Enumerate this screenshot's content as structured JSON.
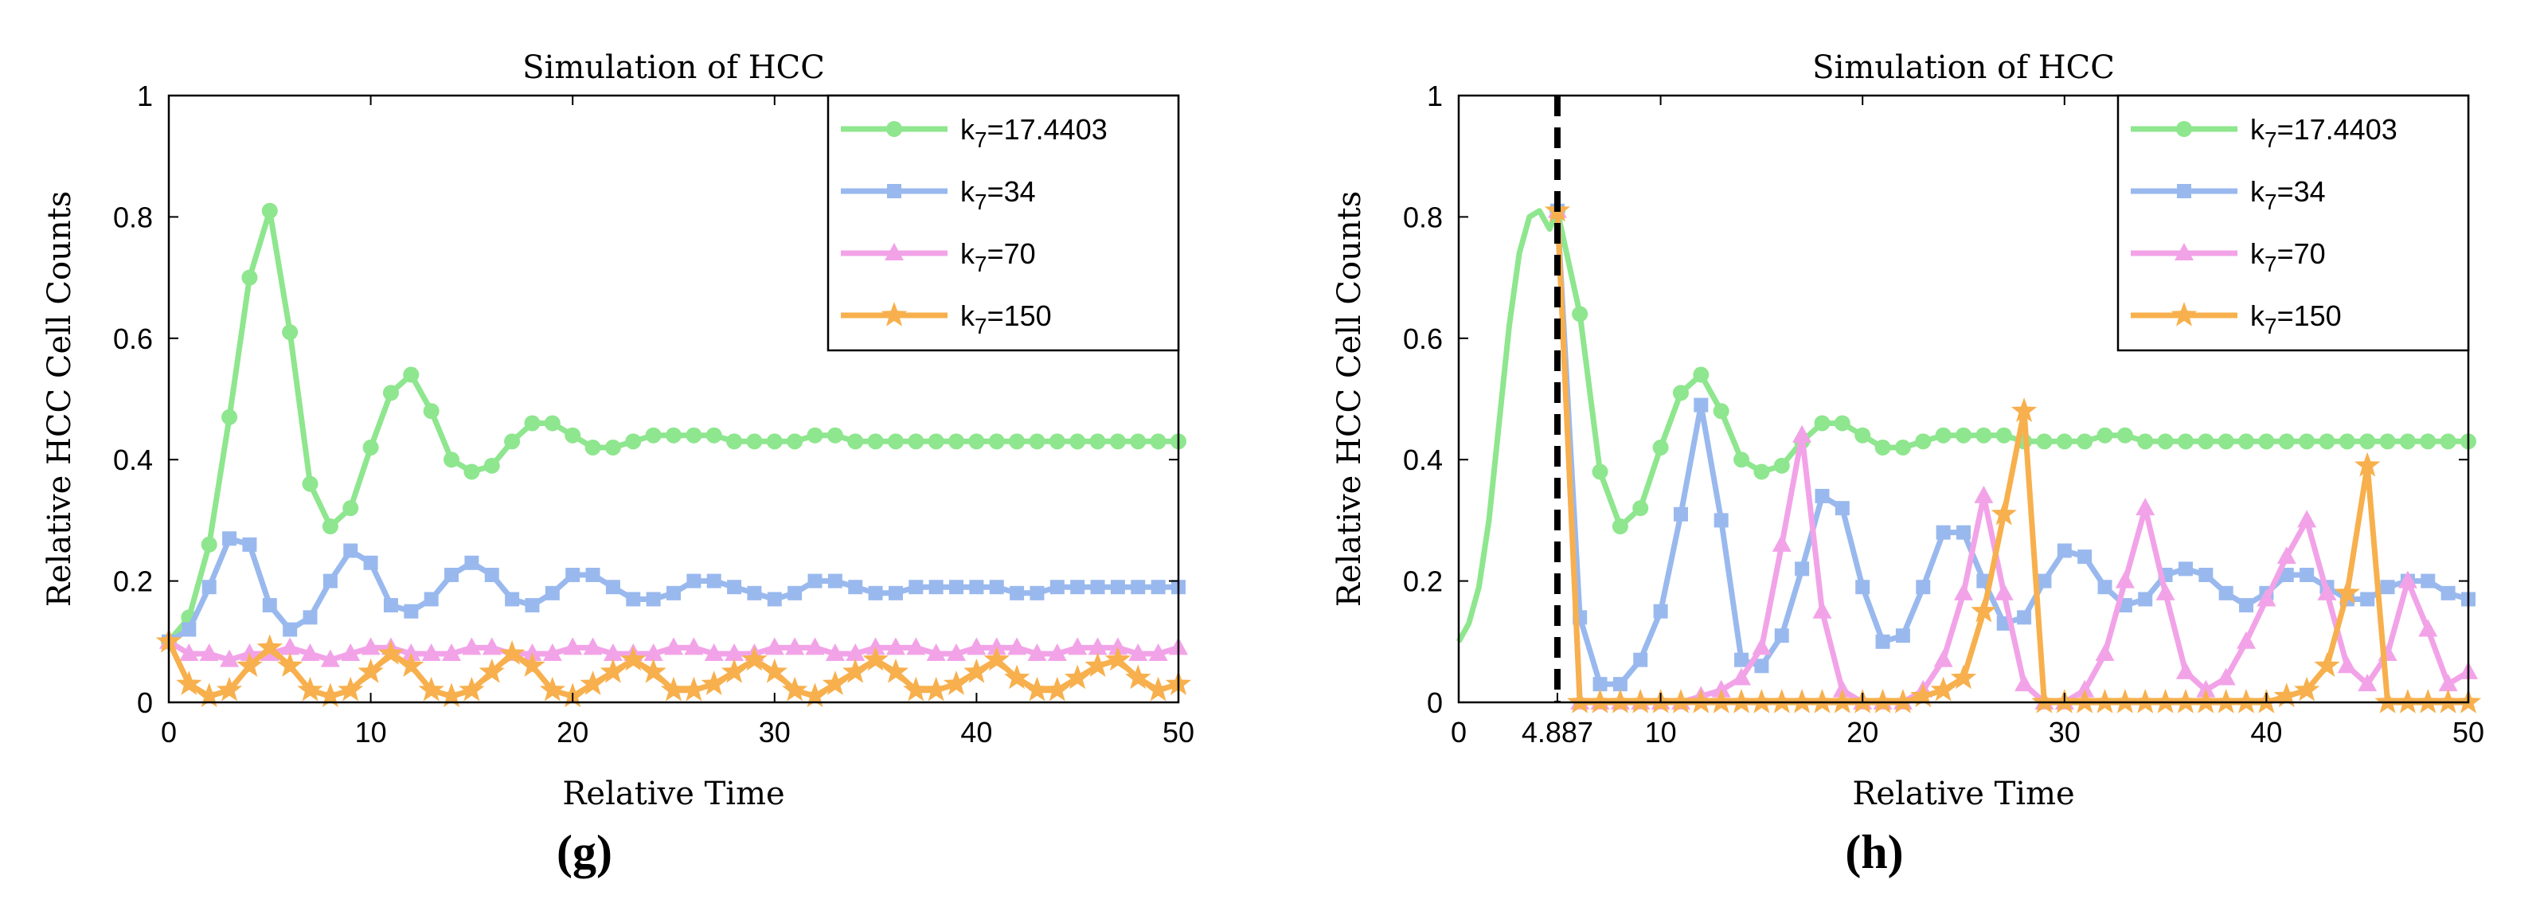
{
  "chart_data": [
    {
      "type": "line",
      "panel_label": "(g)",
      "title": "Simulation of HCC",
      "xlabel": "Relative Time",
      "ylabel": "Relative HCC Cell Counts",
      "xlim": [
        0,
        50
      ],
      "ylim": [
        0,
        1
      ],
      "xticks": [
        {
          "value": 0,
          "label": "0"
        },
        {
          "value": 10,
          "label": "10"
        },
        {
          "value": 20,
          "label": "20"
        },
        {
          "value": 30,
          "label": "30"
        },
        {
          "value": 40,
          "label": "40"
        },
        {
          "value": 50,
          "label": "50"
        }
      ],
      "yticks": [
        {
          "value": 0,
          "label": "0"
        },
        {
          "value": 0.2,
          "label": "0.2"
        },
        {
          "value": 0.4,
          "label": "0.4"
        },
        {
          "value": 0.6,
          "label": "0.6"
        },
        {
          "value": 0.8,
          "label": "0.8"
        },
        {
          "value": 1,
          "label": "1"
        }
      ],
      "legend_position": "top-right",
      "x": [
        0,
        1,
        2,
        3,
        4,
        5,
        6,
        7,
        8,
        9,
        10,
        11,
        12,
        13,
        14,
        15,
        16,
        17,
        18,
        19,
        20,
        21,
        22,
        23,
        24,
        25,
        26,
        27,
        28,
        29,
        30,
        31,
        32,
        33,
        34,
        35,
        36,
        37,
        38,
        39,
        40,
        41,
        42,
        43,
        44,
        45,
        46,
        47,
        48,
        49,
        50
      ],
      "series": [
        {
          "name": "k7=17.4403",
          "legend_base": "k",
          "legend_sub": "7",
          "legend_rest": "=17.4403",
          "color": "#8ee68e",
          "marker": "circle",
          "values": [
            0.1,
            0.14,
            0.26,
            0.47,
            0.7,
            0.81,
            0.61,
            0.36,
            0.29,
            0.32,
            0.42,
            0.51,
            0.54,
            0.48,
            0.4,
            0.38,
            0.39,
            0.43,
            0.46,
            0.46,
            0.44,
            0.42,
            0.42,
            0.43,
            0.44,
            0.44,
            0.44,
            0.44,
            0.43,
            0.43,
            0.43,
            0.43,
            0.44,
            0.44,
            0.43,
            0.43,
            0.43,
            0.43,
            0.43,
            0.43,
            0.43,
            0.43,
            0.43,
            0.43,
            0.43,
            0.43,
            0.43,
            0.43,
            0.43,
            0.43,
            0.43
          ]
        },
        {
          "name": "k7=34",
          "legend_base": "k",
          "legend_sub": "7",
          "legend_rest": "=34",
          "color": "#99b9ee",
          "marker": "square",
          "values": [
            0.1,
            0.12,
            0.19,
            0.27,
            0.26,
            0.16,
            0.12,
            0.14,
            0.2,
            0.25,
            0.23,
            0.16,
            0.15,
            0.17,
            0.21,
            0.23,
            0.21,
            0.17,
            0.16,
            0.18,
            0.21,
            0.21,
            0.19,
            0.17,
            0.17,
            0.18,
            0.2,
            0.2,
            0.19,
            0.18,
            0.17,
            0.18,
            0.2,
            0.2,
            0.19,
            0.18,
            0.18,
            0.19,
            0.19,
            0.19,
            0.19,
            0.19,
            0.18,
            0.18,
            0.19,
            0.19,
            0.19,
            0.19,
            0.19,
            0.19,
            0.19
          ]
        },
        {
          "name": "k7=70",
          "legend_base": "k",
          "legend_sub": "7",
          "legend_rest": "=70",
          "color": "#f2a3e8",
          "marker": "triangle",
          "values": [
            0.1,
            0.08,
            0.08,
            0.07,
            0.08,
            0.08,
            0.09,
            0.08,
            0.07,
            0.08,
            0.09,
            0.09,
            0.08,
            0.08,
            0.08,
            0.09,
            0.09,
            0.08,
            0.08,
            0.08,
            0.09,
            0.09,
            0.08,
            0.08,
            0.08,
            0.09,
            0.09,
            0.08,
            0.08,
            0.08,
            0.09,
            0.09,
            0.09,
            0.08,
            0.08,
            0.09,
            0.09,
            0.09,
            0.08,
            0.08,
            0.09,
            0.09,
            0.09,
            0.08,
            0.08,
            0.09,
            0.09,
            0.09,
            0.08,
            0.08,
            0.09
          ]
        },
        {
          "name": "k7=150",
          "legend_base": "k",
          "legend_sub": "7",
          "legend_rest": "=150",
          "color": "#f7b04d",
          "marker": "star",
          "values": [
            0.1,
            0.03,
            0.01,
            0.02,
            0.06,
            0.09,
            0.06,
            0.02,
            0.01,
            0.02,
            0.05,
            0.08,
            0.06,
            0.02,
            0.01,
            0.02,
            0.05,
            0.08,
            0.06,
            0.02,
            0.01,
            0.03,
            0.05,
            0.07,
            0.05,
            0.02,
            0.02,
            0.03,
            0.05,
            0.07,
            0.05,
            0.02,
            0.01,
            0.03,
            0.05,
            0.07,
            0.05,
            0.02,
            0.02,
            0.03,
            0.05,
            0.07,
            0.04,
            0.02,
            0.02,
            0.04,
            0.06,
            0.07,
            0.04,
            0.02,
            0.03
          ]
        }
      ]
    },
    {
      "type": "line",
      "panel_label": "(h)",
      "title": "Simulation of HCC",
      "xlabel": "Relative Time",
      "ylabel": "Relative HCC Cell Counts",
      "xlim": [
        0,
        50
      ],
      "ylim": [
        0,
        1
      ],
      "xticks": [
        {
          "value": 0,
          "label": "0"
        },
        {
          "value": 4.887,
          "label": "4.887"
        },
        {
          "value": 10,
          "label": "10"
        },
        {
          "value": 20,
          "label": "20"
        },
        {
          "value": 30,
          "label": "30"
        },
        {
          "value": 40,
          "label": "40"
        },
        {
          "value": 50,
          "label": "50"
        }
      ],
      "yticks": [
        {
          "value": 0,
          "label": "0"
        },
        {
          "value": 0.2,
          "label": "0.2"
        },
        {
          "value": 0.4,
          "label": "0.4"
        },
        {
          "value": 0.6,
          "label": "0.6"
        },
        {
          "value": 0.8,
          "label": "0.8"
        },
        {
          "value": 1,
          "label": "1"
        }
      ],
      "vline_x": 4.887,
      "legend_position": "top-right",
      "series": [
        {
          "name": "k7=17.4403",
          "legend_base": "k",
          "legend_sub": "7",
          "legend_rest": "=17.4403",
          "color": "#8ee68e",
          "marker": "circle",
          "x": [
            0,
            0.5,
            1,
            1.5,
            2,
            2.5,
            3,
            3.5,
            4,
            4.5,
            4.887,
            6,
            7,
            8,
            9,
            10,
            11,
            12,
            13,
            14,
            15,
            16,
            17,
            18,
            19,
            20,
            21,
            22,
            23,
            24,
            25,
            26,
            27,
            28,
            29,
            30,
            31,
            32,
            33,
            34,
            35,
            36,
            37,
            38,
            39,
            40,
            41,
            42,
            43,
            44,
            45,
            46,
            47,
            48,
            49,
            50
          ],
          "values": [
            0.1,
            0.13,
            0.19,
            0.3,
            0.46,
            0.62,
            0.74,
            0.8,
            0.81,
            0.78,
            0.81,
            0.64,
            0.38,
            0.29,
            0.32,
            0.42,
            0.51,
            0.54,
            0.48,
            0.4,
            0.38,
            0.39,
            0.43,
            0.46,
            0.46,
            0.44,
            0.42,
            0.42,
            0.43,
            0.44,
            0.44,
            0.44,
            0.44,
            0.43,
            0.43,
            0.43,
            0.43,
            0.44,
            0.44,
            0.43,
            0.43,
            0.43,
            0.43,
            0.43,
            0.43,
            0.43,
            0.43,
            0.43,
            0.43,
            0.43,
            0.43,
            0.43,
            0.43,
            0.43,
            0.43,
            0.43
          ],
          "marker_from_x": 4.887
        },
        {
          "name": "k7=34",
          "legend_base": "k",
          "legend_sub": "7",
          "legend_rest": "=34",
          "color": "#99b9ee",
          "marker": "square",
          "x": [
            4.887,
            6,
            7,
            8,
            9,
            10,
            11,
            12,
            13,
            14,
            15,
            16,
            17,
            18,
            19,
            20,
            21,
            22,
            23,
            24,
            25,
            26,
            27,
            28,
            29,
            30,
            31,
            32,
            33,
            34,
            35,
            36,
            37,
            38,
            39,
            40,
            41,
            42,
            43,
            44,
            45,
            46,
            47,
            48,
            49,
            50
          ],
          "values": [
            0.81,
            0.14,
            0.03,
            0.03,
            0.07,
            0.15,
            0.31,
            0.49,
            0.3,
            0.07,
            0.06,
            0.11,
            0.22,
            0.34,
            0.32,
            0.19,
            0.1,
            0.11,
            0.19,
            0.28,
            0.28,
            0.2,
            0.13,
            0.14,
            0.2,
            0.25,
            0.24,
            0.19,
            0.16,
            0.17,
            0.21,
            0.22,
            0.21,
            0.18,
            0.16,
            0.18,
            0.21,
            0.21,
            0.19,
            0.17,
            0.17,
            0.19,
            0.2,
            0.2,
            0.18,
            0.17
          ]
        },
        {
          "name": "k7=70",
          "legend_base": "k",
          "legend_sub": "7",
          "legend_rest": "=70",
          "color": "#f2a3e8",
          "marker": "triangle",
          "x": [
            4.887,
            6,
            7,
            8,
            9,
            10,
            11,
            12,
            13,
            14,
            15,
            16,
            17,
            18,
            19,
            20,
            21,
            22,
            23,
            24,
            25,
            26,
            27,
            28,
            29,
            30,
            31,
            32,
            33,
            34,
            35,
            36,
            37,
            38,
            39,
            40,
            41,
            42,
            43,
            44,
            45,
            46,
            47,
            48,
            49,
            50
          ],
          "values": [
            0.81,
            0.0,
            0.0,
            0.0,
            0.0,
            0.0,
            0.0,
            0.01,
            0.02,
            0.04,
            0.09,
            0.26,
            0.44,
            0.15,
            0.02,
            0.0,
            0.0,
            0.0,
            0.02,
            0.07,
            0.18,
            0.34,
            0.18,
            0.03,
            0.0,
            0.0,
            0.02,
            0.08,
            0.2,
            0.32,
            0.18,
            0.05,
            0.02,
            0.04,
            0.1,
            0.17,
            0.24,
            0.3,
            0.18,
            0.06,
            0.03,
            0.08,
            0.2,
            0.12,
            0.03,
            0.05
          ]
        },
        {
          "name": "k7=150",
          "legend_base": "k",
          "legend_sub": "7",
          "legend_rest": "=150",
          "color": "#f7b04d",
          "marker": "star",
          "x": [
            4.887,
            6,
            7,
            8,
            9,
            10,
            11,
            12,
            13,
            14,
            15,
            16,
            17,
            18,
            19,
            20,
            21,
            22,
            23,
            24,
            25,
            26,
            27,
            28,
            29,
            30,
            31,
            32,
            33,
            34,
            35,
            36,
            37,
            38,
            39,
            40,
            41,
            42,
            43,
            44,
            45,
            46,
            47,
            48,
            49,
            50
          ],
          "values": [
            0.81,
            0.0,
            0.0,
            0.0,
            0.0,
            0.0,
            0.0,
            0.0,
            0.0,
            0.0,
            0.0,
            0.0,
            0.0,
            0.0,
            0.0,
            0.0,
            0.0,
            0.0,
            0.01,
            0.02,
            0.04,
            0.15,
            0.31,
            0.48,
            0.0,
            0.0,
            0.0,
            0.0,
            0.0,
            0.0,
            0.0,
            0.0,
            0.0,
            0.0,
            0.0,
            0.0,
            0.01,
            0.02,
            0.06,
            0.18,
            0.39,
            0.0,
            0.0,
            0.0,
            0.0,
            0.0
          ],
          "peak_points": [
            {
              "x": 26.9,
              "y": 0.49
            },
            {
              "x": 43.8,
              "y": 0.39
            }
          ]
        }
      ]
    }
  ]
}
